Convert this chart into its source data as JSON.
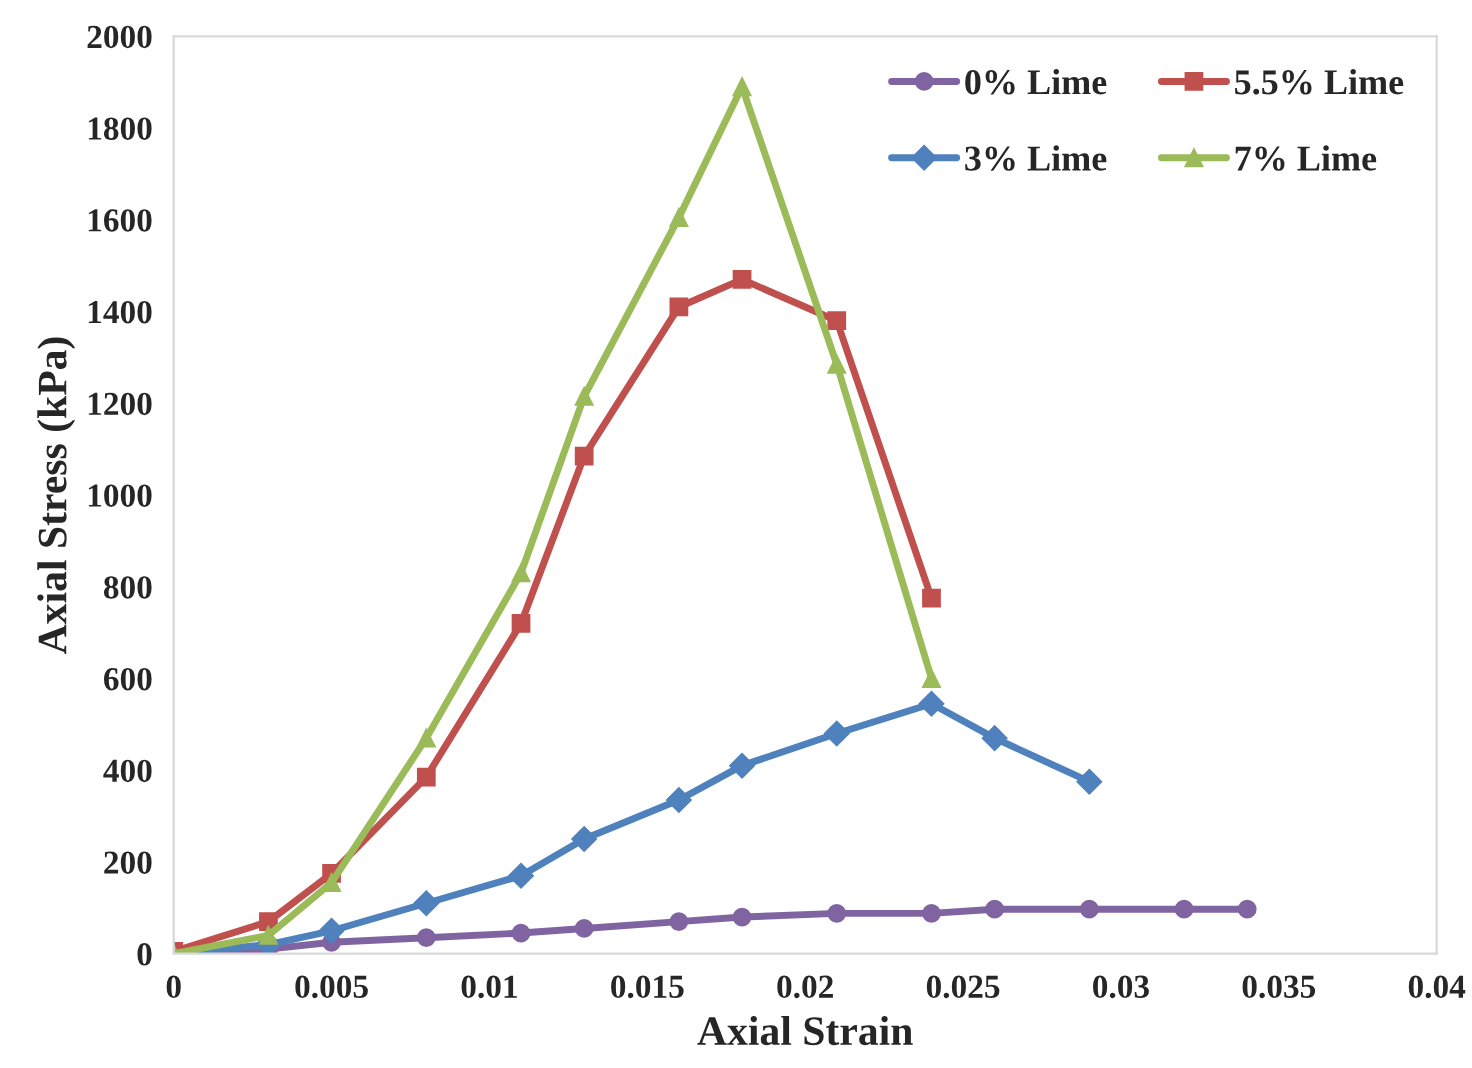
{
  "chart_data": {
    "type": "line",
    "xlabel": "Axial Strain",
    "ylabel": "Axial Stress (kPa)",
    "xlim": [
      0,
      0.04
    ],
    "xticks": [
      0,
      0.005,
      0.01,
      0.015,
      0.02,
      0.025,
      0.03,
      0.035,
      0.04
    ],
    "ylim": [
      0,
      2000
    ],
    "yticks": [
      0,
      200,
      400,
      600,
      800,
      1000,
      1200,
      1400,
      1600,
      1800,
      2000
    ],
    "grid": false,
    "legend": "top right",
    "line_style": "solid",
    "series": [
      {
        "name": "0% Lime",
        "color": "#8064a2",
        "marker": "circle",
        "x": [
          0,
          0.003,
          0.005,
          0.008,
          0.011,
          0.013,
          0.016,
          0.018,
          0.021,
          0.024,
          0.026,
          0.029,
          0.032,
          0.034
        ],
        "values": [
          0,
          10,
          25,
          35,
          45,
          55,
          70,
          80,
          88,
          88,
          97,
          97,
          97,
          97
        ]
      },
      {
        "name": "3% Lime",
        "color": "#4f81bd",
        "marker": "diamond",
        "x": [
          0,
          0.003,
          0.005,
          0.008,
          0.011,
          0.013,
          0.016,
          0.018,
          0.021,
          0.024,
          0.026,
          0.029
        ],
        "values": [
          0,
          20,
          50,
          110,
          170,
          250,
          335,
          410,
          480,
          545,
          470,
          375
        ]
      },
      {
        "name": "5.5% Lime",
        "color": "#c0504d",
        "marker": "square",
        "x": [
          0,
          0.003,
          0.005,
          0.008,
          0.011,
          0.013,
          0.016,
          0.018,
          0.021,
          0.024
        ],
        "values": [
          5,
          70,
          175,
          385,
          720,
          1085,
          1410,
          1470,
          1380,
          775
        ]
      },
      {
        "name": "7% Lime",
        "color": "#9bbb59",
        "marker": "triangle",
        "x": [
          0,
          0.003,
          0.005,
          0.008,
          0.011,
          0.013,
          0.016,
          0.018,
          0.021,
          0.024
        ],
        "values": [
          0,
          40,
          155,
          470,
          830,
          1215,
          1605,
          1890,
          1285,
          600
        ]
      }
    ]
  }
}
